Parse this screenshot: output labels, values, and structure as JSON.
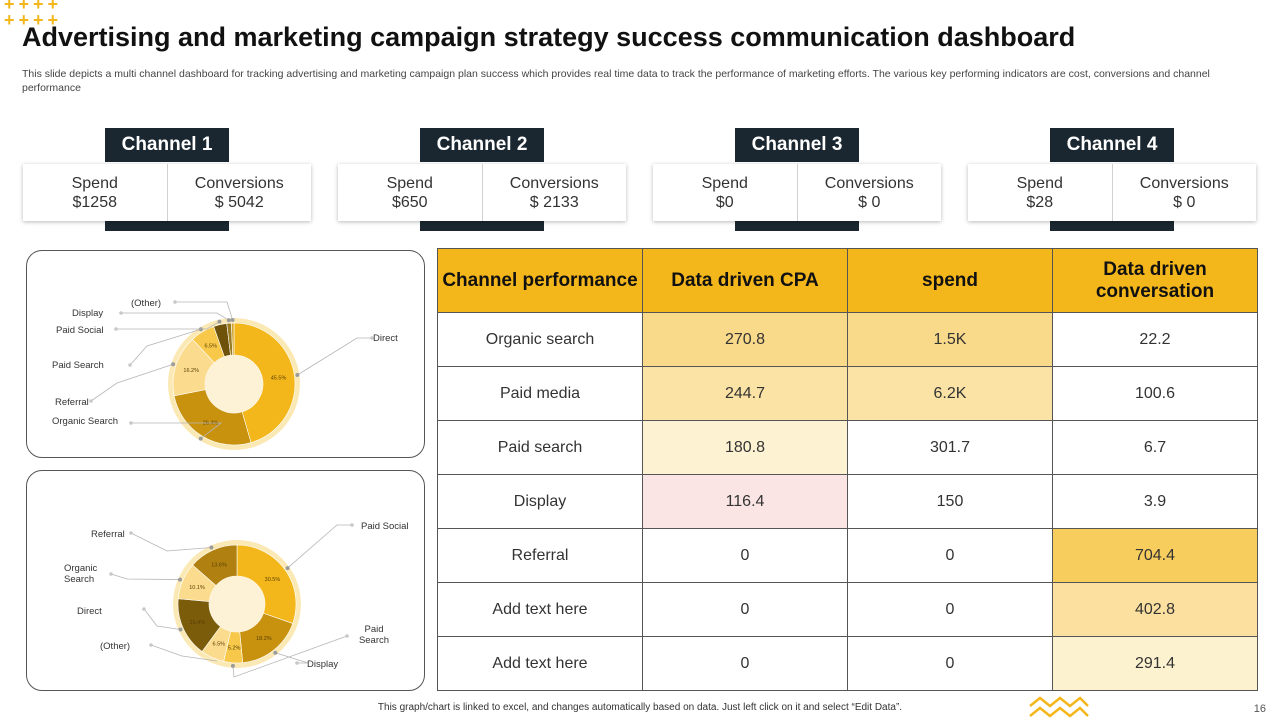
{
  "decoration": {
    "plus_row1": "++++",
    "plus_row2": "++++"
  },
  "title": "Advertising and marketing campaign strategy success communication dashboard",
  "subtitle": "This slide depicts a multi channel dashboard for tracking advertising and marketing campaign plan success which provides real time data to track the performance of marketing efforts. The various key performing indicators are cost, conversions and channel performance",
  "channels": [
    {
      "name": "Channel 1",
      "spend_label": "Spend",
      "spend": "$1258",
      "conv_label": "Conversions",
      "conv": "$ 5042"
    },
    {
      "name": "Channel 2",
      "spend_label": "Spend",
      "spend": "$650",
      "conv_label": "Conversions",
      "conv": "$ 2133"
    },
    {
      "name": "Channel 3",
      "spend_label": "Spend",
      "spend": "$0",
      "conv_label": "Conversions",
      "conv": "$ 0"
    },
    {
      "name": "Channel 4",
      "spend_label": "Spend",
      "spend": "$28",
      "conv_label": "Conversions",
      "conv": "$ 0"
    }
  ],
  "chart_data": [
    {
      "type": "pie",
      "slices": [
        {
          "label": "Direct",
          "value": 45.5,
          "value_label": "45.5%",
          "color": "#f4b71b"
        },
        {
          "label": "Organic Search",
          "value": 26.4,
          "value_label": "26.4%",
          "color": "#c8920f"
        },
        {
          "label": "Referral",
          "value": 16.2,
          "value_label": "16.2%",
          "color": "#fbdc8e"
        },
        {
          "label": "Paid Search",
          "value": 6.5,
          "value_label": "6.5%",
          "color": "#f7c84a"
        },
        {
          "label": "Paid Social",
          "value": 3.5,
          "value_label": "",
          "color": "#6e5209"
        },
        {
          "label": "Display",
          "value": 1.2,
          "value_label": "",
          "color": "#9b7b20"
        },
        {
          "label": "(Other)",
          "value": 0.7,
          "value_label": "",
          "color": "#d4a52c"
        }
      ]
    },
    {
      "type": "pie",
      "slices": [
        {
          "label": "Paid Social",
          "value": 30.5,
          "value_label": "30.5%",
          "color": "#f4b71b"
        },
        {
          "label": "Display",
          "value": 18.2,
          "value_label": "18.2%",
          "color": "#c8920f"
        },
        {
          "label": "(Other)",
          "value": 5.2,
          "value_label": "5.2%",
          "color": "#f7c84a"
        },
        {
          "label": "",
          "value": 6.5,
          "value_label": "6.5%",
          "color": "#fbdc8e"
        },
        {
          "label": "Direct",
          "value": 16.4,
          "value_label": "16.4%",
          "color": "#7a5c0b"
        },
        {
          "label": "Organic Search",
          "value": 10.1,
          "value_label": "10.1%",
          "color": "#fbdc8e"
        },
        {
          "label": "Referral",
          "value": 13.6,
          "value_label": "13.6%",
          "color": "#b08010"
        }
      ]
    }
  ],
  "table": {
    "headers": [
      "Channel performance",
      "Data driven CPA",
      "spend",
      "Data driven conversation"
    ],
    "rows": [
      {
        "channel": "Organic search",
        "cpa": "270.8",
        "spend": "1.5K",
        "conv": "22.2"
      },
      {
        "channel": "Paid media",
        "cpa": "244.7",
        "spend": "6.2K",
        "conv": "100.6"
      },
      {
        "channel": "Paid search",
        "cpa": "180.8",
        "spend": "301.7",
        "conv": "6.7"
      },
      {
        "channel": "Display",
        "cpa": "116.4",
        "spend": "150",
        "conv": "3.9"
      },
      {
        "channel": "Referral",
        "cpa": "0",
        "spend": "0",
        "conv": "704.4"
      },
      {
        "channel": "Add text here",
        "cpa": "0",
        "spend": "0",
        "conv": "402.8"
      },
      {
        "channel": "Add text here",
        "cpa": "0",
        "spend": "0",
        "conv": "291.4"
      }
    ],
    "cpa_colors": [
      "#f9d98a",
      "#fbe3a6",
      "#fdf3d2",
      "#fbe4e4",
      "#ffffff",
      "#ffffff",
      "#ffffff"
    ],
    "spend_colors": [
      "#f9d98a",
      "#fbe3a6",
      "#ffffff",
      "#ffffff",
      "#ffffff",
      "#ffffff",
      "#ffffff"
    ],
    "conv_colors": [
      "#ffffff",
      "#ffffff",
      "#ffffff",
      "#ffffff",
      "#f7cd5e",
      "#fbe0a0",
      "#fdf2d0"
    ]
  },
  "footer_note": "This graph/chart is linked to excel, and changes automatically based on data. Just left click on it and select “Edit Data”.",
  "page_number": "16"
}
